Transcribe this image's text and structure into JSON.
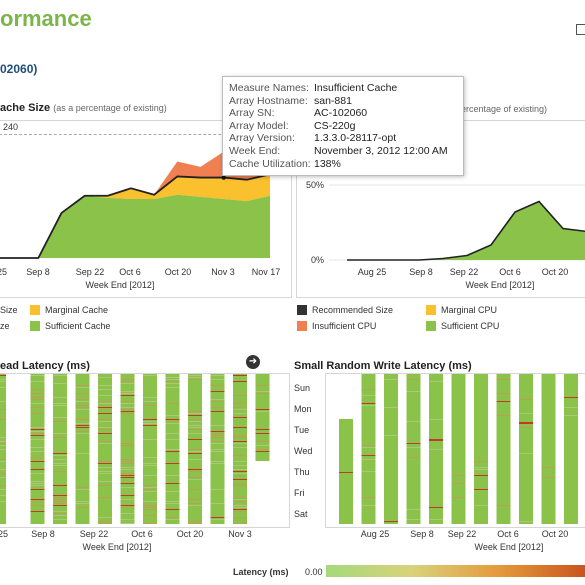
{
  "page": {
    "title": "ormance",
    "subtitle": "02060)"
  },
  "top_left": {
    "title": "ache Size",
    "note": "(as a percentage of existing)",
    "filter_value": "240",
    "x_ticks": [
      "25",
      "Sep 8",
      "Sep 22",
      "Oct 6",
      "Oct 20",
      "Nov 3",
      "Nov 17"
    ],
    "x_label": "Week End [2012]",
    "legend": [
      {
        "label": "Size",
        "color": "#ffffff"
      },
      {
        "label": "Marginal Cache",
        "color": "#fbc02d"
      },
      {
        "label": "ze",
        "color": "#ffffff"
      },
      {
        "label": "Sufficient Cache",
        "color": "#8bc34a"
      }
    ]
  },
  "top_right": {
    "note": "percentage of existing)",
    "y_ticks": [
      "50%",
      "0%"
    ],
    "x_ticks": [
      "Aug 25",
      "Sep 8",
      "Sep 22",
      "Oct 6",
      "Oct 20"
    ],
    "x_label": "Week End [2012]",
    "legend": [
      {
        "label": "Recommended Size",
        "color": "#333333"
      },
      {
        "label": "Marginal CPU",
        "color": "#fbc02d"
      },
      {
        "label": "Insufficient CPU",
        "color": "#f07f52"
      },
      {
        "label": "Sufficient CPU",
        "color": "#8bc34a"
      }
    ]
  },
  "bottom_left": {
    "title": "ead Latency (ms)",
    "x_ticks": [
      "25",
      "Sep 8",
      "Sep 22",
      "Oct 6",
      "Oct 20",
      "Nov 3"
    ],
    "x_label": "Week End [2012]"
  },
  "bottom_right": {
    "title": "Small Random Write Latency (ms)",
    "y_ticks": [
      "Sun",
      "Mon",
      "Tue",
      "Wed",
      "Thu",
      "Fri",
      "Sat"
    ],
    "x_ticks": [
      "Aug 25",
      "Sep 8",
      "Sep 22",
      "Oct 6",
      "Oct 20"
    ],
    "x_label": "Week End [2012]"
  },
  "latency_legend": {
    "label": "Latency (ms)",
    "min": "0.00"
  },
  "tooltip": [
    {
      "key": "Measure Names:",
      "value": "Insufficient Cache"
    },
    {
      "key": "Array Hostname:",
      "value": "san-881"
    },
    {
      "key": "Array SN:",
      "value": "AC-102060"
    },
    {
      "key": "Array Model:",
      "value": "CS-220g"
    },
    {
      "key": "Array Version:",
      "value": "1.3.3.0-28117-opt"
    },
    {
      "key": "Week End:",
      "value": "November 3, 2012 12:00 AM"
    },
    {
      "key": "Cache Utilization:",
      "value": "138%"
    }
  ],
  "colors": {
    "green": "#8bc34a",
    "yellow": "#fbc02d",
    "orange": "#f07f52",
    "red": "#e74c3c",
    "dark": "#333333",
    "brand": "#7ab648"
  },
  "chart_data": [
    {
      "type": "area",
      "x": [
        "Aug 25",
        "Sep 1",
        "Sep 8",
        "Sep 15",
        "Sep 22",
        "Sep 29",
        "Oct 6",
        "Oct 13",
        "Oct 20",
        "Oct 27",
        "Nov 3",
        "Nov 10",
        "Nov 17"
      ],
      "series": [
        {
          "name": "Sufficient Cache",
          "values": [
            0,
            0,
            0,
            42,
            58,
            56,
            55,
            55,
            59,
            57,
            55,
            53,
            58
          ]
        },
        {
          "name": "Marginal Cache",
          "values": [
            0,
            0,
            0,
            0,
            0,
            2,
            10,
            4,
            17,
            18,
            20,
            20,
            20
          ]
        },
        {
          "name": "Insufficient Cache",
          "values": [
            0,
            0,
            0,
            0,
            0,
            0,
            0,
            0,
            14,
            10,
            24,
            8,
            0
          ]
        }
      ],
      "ylim": [
        0,
        110
      ]
    },
    {
      "type": "area",
      "x": [
        "Aug 18",
        "Aug 25",
        "Sep 1",
        "Sep 8",
        "Sep 15",
        "Sep 22",
        "Sep 29",
        "Oct 6",
        "Oct 13",
        "Oct 20",
        "Oct 27"
      ],
      "series": [
        {
          "name": "Sufficient CPU",
          "values": [
            0,
            0,
            0,
            0,
            1,
            3,
            10,
            32,
            39,
            21,
            19
          ]
        }
      ],
      "y_ticks": [
        "50%",
        "0%"
      ],
      "ylim": [
        0,
        80
      ]
    }
  ]
}
